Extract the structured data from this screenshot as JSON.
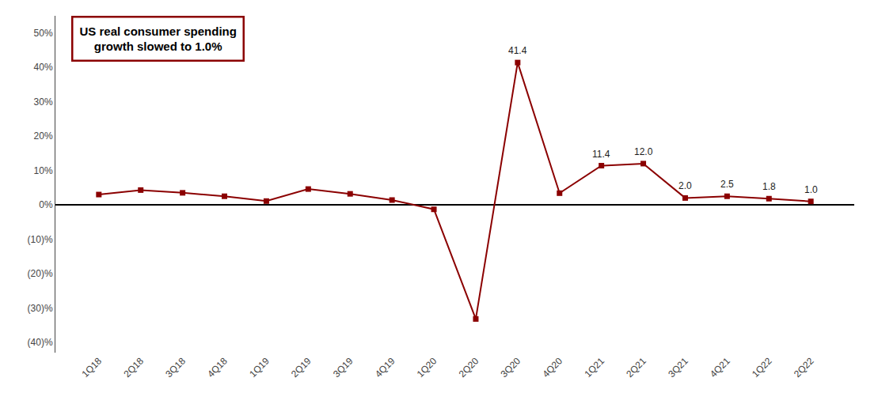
{
  "chart_data": {
    "type": "line",
    "title": "US real consumer spending\ngrowth slowed to 1.0%",
    "categories": [
      "1Q18",
      "2Q18",
      "3Q18",
      "4Q18",
      "1Q19",
      "2Q19",
      "3Q19",
      "4Q19",
      "1Q20",
      "2Q20",
      "3Q20",
      "4Q20",
      "1Q21",
      "2Q21",
      "3Q21",
      "4Q21",
      "1Q22",
      "2Q22"
    ],
    "values": [
      3.0,
      4.3,
      3.5,
      2.5,
      1.1,
      4.6,
      3.2,
      1.4,
      -1.3,
      -33.2,
      41.4,
      3.4,
      11.4,
      12.0,
      2.0,
      2.5,
      1.8,
      1.0
    ],
    "color": "#8B0000",
    "marker": "square",
    "line_style": "solid",
    "annotations": [
      {
        "x": "3Q20",
        "y": 41.4,
        "text": "41.4"
      },
      {
        "x": "1Q21",
        "y": 11.4,
        "text": "11.4"
      },
      {
        "x": "2Q21",
        "y": 12.0,
        "text": "12.0"
      },
      {
        "x": "3Q21",
        "y": 2.0,
        "text": "2.0"
      },
      {
        "x": "4Q21",
        "y": 2.5,
        "text": "2.5"
      },
      {
        "x": "1Q22",
        "y": 1.8,
        "text": "1.8"
      },
      {
        "x": "2Q22",
        "y": 1.0,
        "text": "1.0"
      }
    ],
    "ylim": [
      -43,
      55
    ],
    "yticks": [
      {
        "value": -40,
        "label": "(40)%"
      },
      {
        "value": -30,
        "label": "(30)%"
      },
      {
        "value": -20,
        "label": "(20)%"
      },
      {
        "value": -10,
        "label": "(10)%"
      },
      {
        "value": 0,
        "label": "0%"
      },
      {
        "value": 10,
        "label": "10%"
      },
      {
        "value": 20,
        "label": "20%"
      },
      {
        "value": 30,
        "label": "30%"
      },
      {
        "value": 40,
        "label": "40%"
      },
      {
        "value": 50,
        "label": "50%"
      }
    ],
    "grid": false
  }
}
